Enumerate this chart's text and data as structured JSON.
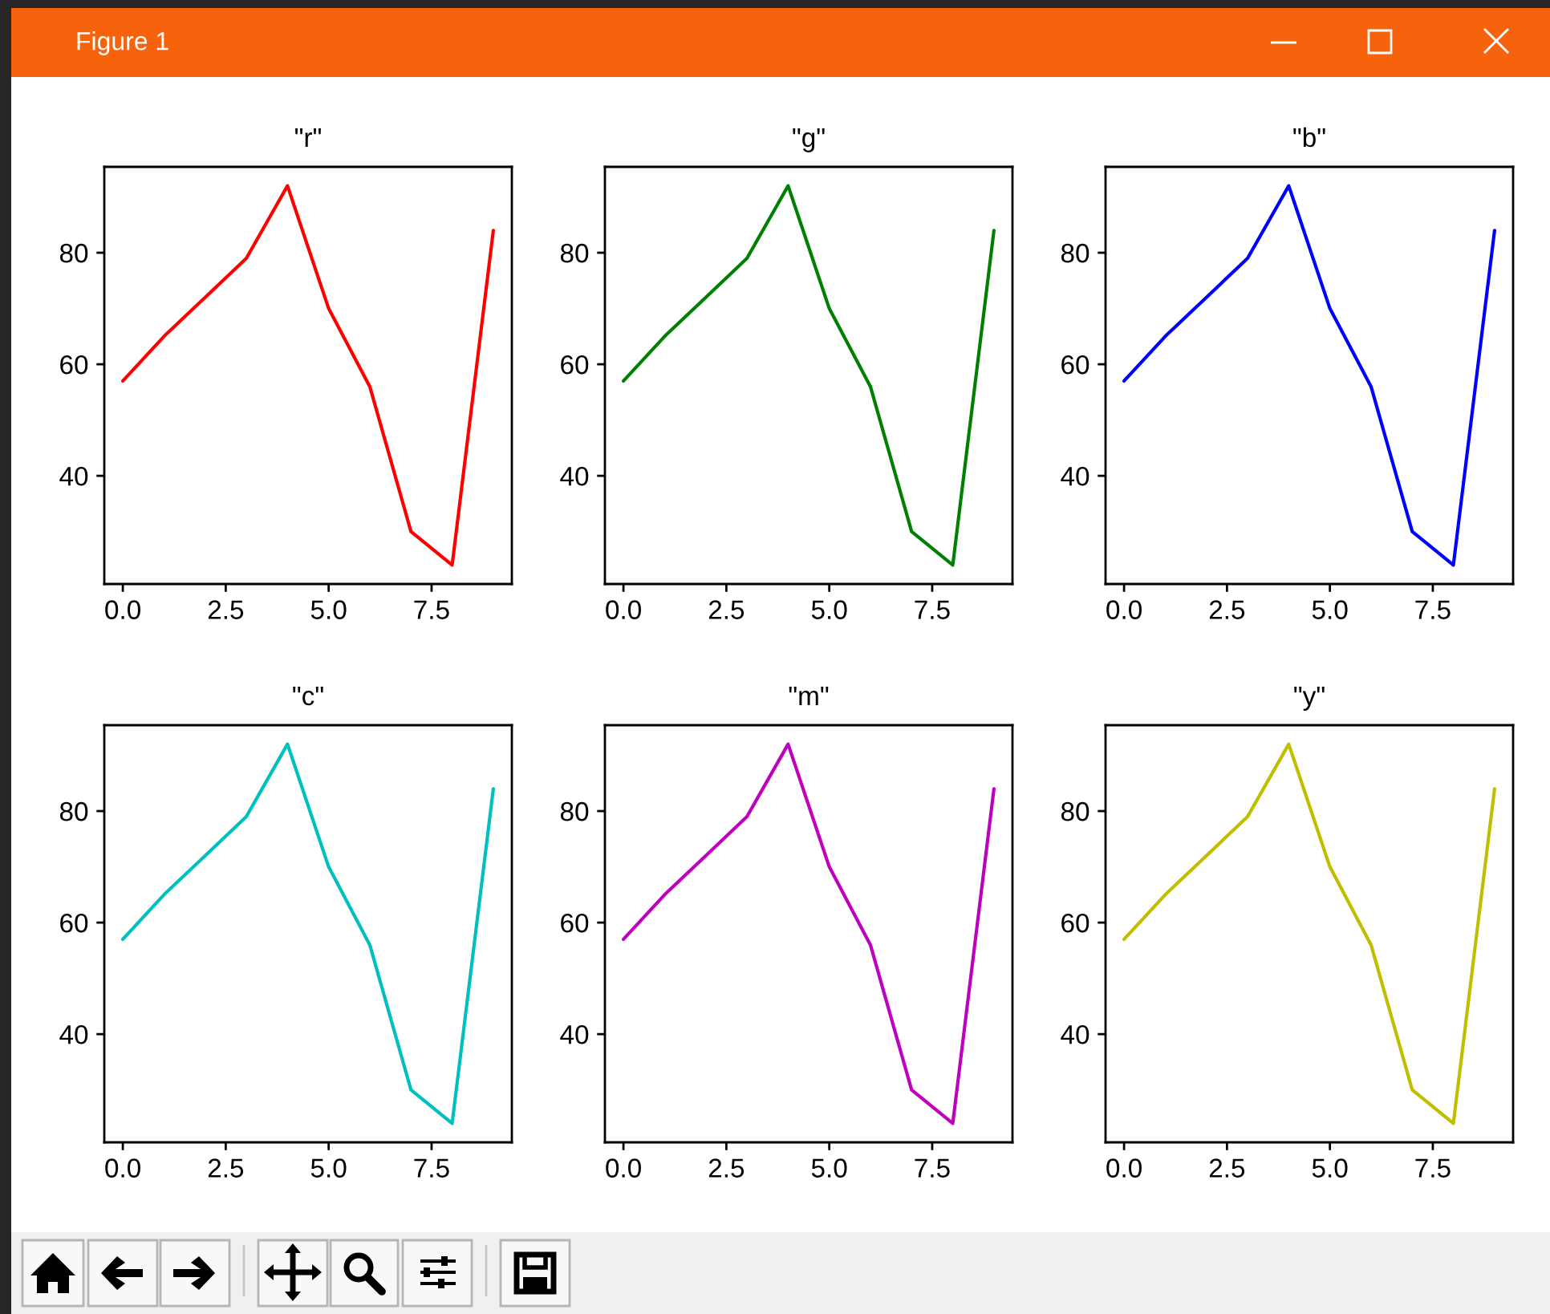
{
  "chart_data": [
    {
      "type": "line",
      "title": "\"r\"",
      "annotations": [
        "Figure 1"
      ],
      "x": [
        0,
        1,
        2,
        3,
        4,
        5,
        6,
        7,
        8,
        9
      ],
      "values": [
        57,
        65,
        72,
        79,
        92,
        70,
        56,
        30,
        24,
        84
      ],
      "color": "#ff0000",
      "xlim": [
        -0.45,
        9.45
      ],
      "ylim": [
        20.6,
        95.4
      ],
      "xticks": [
        {
          "value": 0,
          "label": "0.0"
        },
        {
          "value": 2.5,
          "label": "2.5"
        },
        {
          "value": 5,
          "label": "5.0"
        },
        {
          "value": 7.5,
          "label": "7.5"
        }
      ],
      "yticks": [
        40,
        60,
        80
      ]
    },
    {
      "type": "line",
      "title": "\"g\"",
      "x": [
        0,
        1,
        2,
        3,
        4,
        5,
        6,
        7,
        8,
        9
      ],
      "values": [
        57,
        65,
        72,
        79,
        92,
        70,
        56,
        30,
        24,
        84
      ],
      "color": "#008000",
      "xlim": [
        -0.45,
        9.45
      ],
      "ylim": [
        20.6,
        95.4
      ],
      "xticks": [
        {
          "value": 0,
          "label": "0.0"
        },
        {
          "value": 2.5,
          "label": "2.5"
        },
        {
          "value": 5,
          "label": "5.0"
        },
        {
          "value": 7.5,
          "label": "7.5"
        }
      ],
      "yticks": [
        40,
        60,
        80
      ]
    },
    {
      "type": "line",
      "title": "\"b\"",
      "x": [
        0,
        1,
        2,
        3,
        4,
        5,
        6,
        7,
        8,
        9
      ],
      "values": [
        57,
        65,
        72,
        79,
        92,
        70,
        56,
        30,
        24,
        84
      ],
      "color": "#0000ff",
      "xlim": [
        -0.45,
        9.45
      ],
      "ylim": [
        20.6,
        95.4
      ],
      "xticks": [
        {
          "value": 0,
          "label": "0.0"
        },
        {
          "value": 2.5,
          "label": "2.5"
        },
        {
          "value": 5,
          "label": "5.0"
        },
        {
          "value": 7.5,
          "label": "7.5"
        }
      ],
      "yticks": [
        40,
        60,
        80
      ]
    },
    {
      "type": "line",
      "title": "\"c\"",
      "x": [
        0,
        1,
        2,
        3,
        4,
        5,
        6,
        7,
        8,
        9
      ],
      "values": [
        57,
        65,
        72,
        79,
        92,
        70,
        56,
        30,
        24,
        84
      ],
      "color": "#00bfbf",
      "xlim": [
        -0.45,
        9.45
      ],
      "ylim": [
        20.6,
        95.4
      ],
      "xticks": [
        {
          "value": 0,
          "label": "0.0"
        },
        {
          "value": 2.5,
          "label": "2.5"
        },
        {
          "value": 5,
          "label": "5.0"
        },
        {
          "value": 7.5,
          "label": "7.5"
        }
      ],
      "yticks": [
        40,
        60,
        80
      ]
    },
    {
      "type": "line",
      "title": "\"m\"",
      "x": [
        0,
        1,
        2,
        3,
        4,
        5,
        6,
        7,
        8,
        9
      ],
      "values": [
        57,
        65,
        72,
        79,
        92,
        70,
        56,
        30,
        24,
        84
      ],
      "color": "#bf00bf",
      "xlim": [
        -0.45,
        9.45
      ],
      "ylim": [
        20.6,
        95.4
      ],
      "xticks": [
        {
          "value": 0,
          "label": "0.0"
        },
        {
          "value": 2.5,
          "label": "2.5"
        },
        {
          "value": 5,
          "label": "5.0"
        },
        {
          "value": 7.5,
          "label": "7.5"
        }
      ],
      "yticks": [
        40,
        60,
        80
      ]
    },
    {
      "type": "line",
      "title": "\"y\"",
      "x": [
        0,
        1,
        2,
        3,
        4,
        5,
        6,
        7,
        8,
        9
      ],
      "values": [
        57,
        65,
        72,
        79,
        92,
        70,
        56,
        30,
        24,
        84
      ],
      "color": "#bfbf00",
      "xlim": [
        -0.45,
        9.45
      ],
      "ylim": [
        20.6,
        95.4
      ],
      "xticks": [
        {
          "value": 0,
          "label": "0.0"
        },
        {
          "value": 2.5,
          "label": "2.5"
        },
        {
          "value": 5,
          "label": "5.0"
        },
        {
          "value": 7.5,
          "label": "7.5"
        }
      ],
      "yticks": [
        40,
        60,
        80
      ]
    }
  ]
}
